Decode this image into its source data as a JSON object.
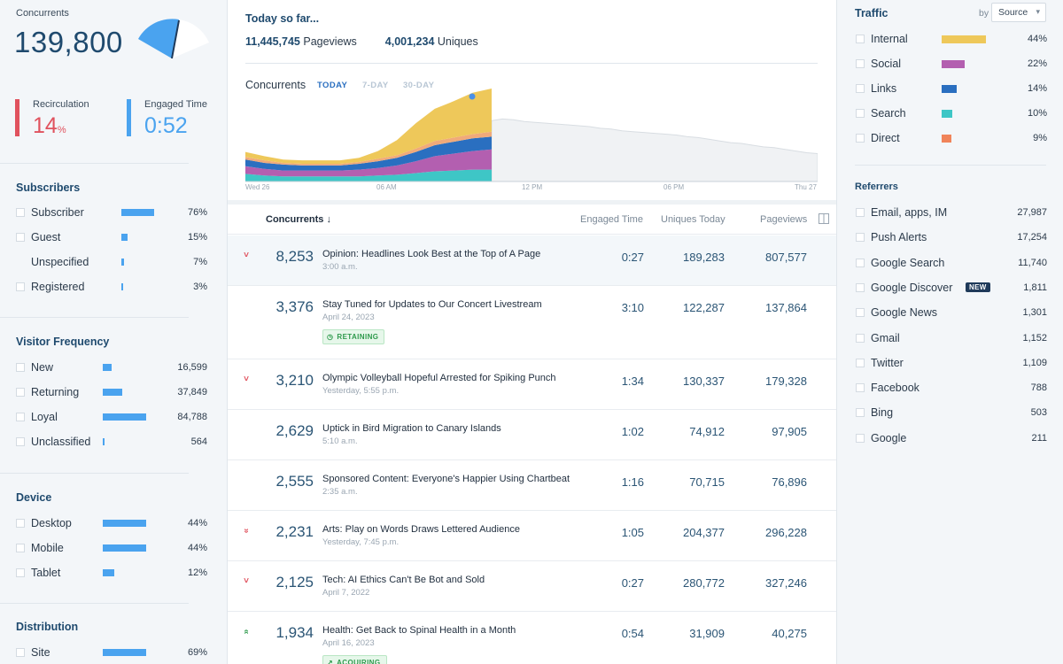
{
  "concurrents": {
    "label": "Concurrents",
    "value": "139,800"
  },
  "metrics": {
    "recirculation": {
      "label": "Recirculation",
      "value": "14",
      "unit": "%",
      "color": "#e0525e"
    },
    "engaged_time": {
      "label": "Engaged Time",
      "value": "0:52",
      "color": "#4aa3ef"
    }
  },
  "subscribers": {
    "title": "Subscribers",
    "items": [
      {
        "label": "Subscriber",
        "value": "76%",
        "fraction": 0.76,
        "checkbox": true
      },
      {
        "label": "Guest",
        "value": "15%",
        "fraction": 0.15,
        "checkbox": true
      },
      {
        "label": "Unspecified",
        "value": "7%",
        "fraction": 0.07,
        "checkbox": false
      },
      {
        "label": "Registered",
        "value": "3%",
        "fraction": 0.03,
        "checkbox": true
      }
    ]
  },
  "visitor_frequency": {
    "title": "Visitor Frequency",
    "items": [
      {
        "label": "New",
        "value": "16,599",
        "fraction": 0.2
      },
      {
        "label": "Returning",
        "value": "37,849",
        "fraction": 0.45
      },
      {
        "label": "Loyal",
        "value": "84,788",
        "fraction": 1.0
      },
      {
        "label": "Unclassified",
        "value": "564",
        "fraction": 0.02
      }
    ]
  },
  "device": {
    "title": "Device",
    "items": [
      {
        "label": "Desktop",
        "value": "44%",
        "fraction": 1.0
      },
      {
        "label": "Mobile",
        "value": "44%",
        "fraction": 1.0
      },
      {
        "label": "Tablet",
        "value": "12%",
        "fraction": 0.27
      }
    ]
  },
  "distribution": {
    "title": "Distribution",
    "items": [
      {
        "label": "Site",
        "value": "69%",
        "fraction": 1.0
      }
    ]
  },
  "today": {
    "title": "Today so far...",
    "pageviews_value": "11,445,745",
    "pageviews_label": "Pageviews",
    "uniques_value": "4,001,234",
    "uniques_label": "Uniques"
  },
  "chart": {
    "title": "Concurrents",
    "tabs": [
      "TODAY",
      "7-DAY",
      "30-DAY"
    ],
    "active_tab": "TODAY",
    "x_labels": [
      "Wed 26",
      "06 AM",
      "12 PM",
      "06 PM",
      "Thu 27"
    ]
  },
  "chart_data": {
    "type": "area",
    "title": "Concurrents",
    "x_labels": [
      "Wed 26",
      "06 AM",
      "12 PM",
      "06 PM",
      "Thu 27"
    ],
    "series": [
      {
        "color": "#3ec6c6",
        "values": [
          9,
          7,
          6,
          6,
          6,
          6,
          6,
          7,
          8,
          10,
          12,
          13,
          14,
          14
        ]
      },
      {
        "color": "#b35fb0",
        "values": [
          9,
          8,
          7,
          7,
          7,
          7,
          8,
          9,
          11,
          14,
          18,
          20,
          22,
          24
        ]
      },
      {
        "color": "#2a6fc0",
        "values": [
          8,
          7,
          7,
          6,
          6,
          6,
          7,
          8,
          9,
          11,
          13,
          14,
          15,
          15
        ]
      },
      {
        "color": "#f0aa7a",
        "values": [
          3,
          3,
          2,
          2,
          2,
          2,
          2,
          3,
          3,
          4,
          5,
          5,
          5,
          6
        ]
      },
      {
        "color": "#eec85a",
        "values": [
          6,
          5,
          4,
          4,
          4,
          4,
          5,
          9,
          18,
          30,
          38,
          43,
          49,
          51
        ]
      }
    ],
    "previous_day": [
      72,
      74,
      73,
      71,
      70,
      69,
      68,
      67,
      66,
      65,
      63,
      62,
      60,
      59,
      58,
      57,
      56,
      55,
      53,
      52,
      50,
      48,
      46,
      45,
      43,
      41,
      40,
      38,
      36,
      34,
      33
    ]
  },
  "table": {
    "headers": {
      "concurrents": "Concurrents ↓",
      "engaged": "Engaged Time",
      "uniques": "Uniques Today",
      "pageviews": "Pageviews"
    },
    "rows": [
      {
        "trend": "down",
        "concurrents": "8,253",
        "title": "Opinion: Headlines Look Best at the Top of A Page",
        "subtitle": "3:00 a.m.",
        "engaged": "0:27",
        "uniques": "189,283",
        "pageviews": "807,577",
        "highlight": true
      },
      {
        "trend": "",
        "concurrents": "3,376",
        "title": "Stay Tuned for Updates to Our Concert Livestream",
        "subtitle": "April 24, 2023",
        "engaged": "3:10",
        "uniques": "122,287",
        "pageviews": "137,864",
        "badge": "RETAINING"
      },
      {
        "trend": "down",
        "concurrents": "3,210",
        "title": "Olympic Volleyball Hopeful Arrested for Spiking Punch",
        "subtitle": "Yesterday, 5:55 p.m.",
        "engaged": "1:34",
        "uniques": "130,337",
        "pageviews": "179,328"
      },
      {
        "trend": "",
        "concurrents": "2,629",
        "title": "Uptick in Bird Migration to Canary Islands",
        "subtitle": "5:10 a.m.",
        "engaged": "1:02",
        "uniques": "74,912",
        "pageviews": "97,905"
      },
      {
        "trend": "",
        "concurrents": "2,555",
        "title": "Sponsored Content: Everyone's Happier Using Chartbeat",
        "subtitle": "2:35 a.m.",
        "engaged": "1:16",
        "uniques": "70,715",
        "pageviews": "76,896"
      },
      {
        "trend": "down2",
        "concurrents": "2,231",
        "title": "Arts: Play on Words Draws Lettered Audience",
        "subtitle": "Yesterday, 7:45 p.m.",
        "engaged": "1:05",
        "uniques": "204,377",
        "pageviews": "296,228"
      },
      {
        "trend": "down",
        "concurrents": "2,125",
        "title": "Tech: AI Ethics Can't Be Bot and Sold",
        "subtitle": "April 7, 2022",
        "engaged": "0:27",
        "uniques": "280,772",
        "pageviews": "327,246"
      },
      {
        "trend": "up2",
        "concurrents": "1,934",
        "title": "Health: Get Back to Spinal Health in a Month",
        "subtitle": "April 16, 2023",
        "engaged": "0:54",
        "uniques": "31,909",
        "pageviews": "40,275",
        "badge": "ACQUIRING"
      }
    ]
  },
  "traffic": {
    "title": "Traffic",
    "by_label": "by",
    "select_value": "Source",
    "items": [
      {
        "label": "Internal",
        "value": "44%",
        "color": "#eec85a",
        "fraction": 1.0
      },
      {
        "label": "Social",
        "value": "22%",
        "color": "#b35fb0",
        "fraction": 0.52
      },
      {
        "label": "Links",
        "value": "14%",
        "color": "#2a6fc0",
        "fraction": 0.34
      },
      {
        "label": "Search",
        "value": "10%",
        "color": "#3ec6c6",
        "fraction": 0.24
      },
      {
        "label": "Direct",
        "value": "9%",
        "color": "#f0845a",
        "fraction": 0.22
      }
    ]
  },
  "referrers": {
    "title": "Referrers",
    "new_badge": "NEW",
    "items": [
      {
        "label": "Email, apps, IM",
        "value": "27,987"
      },
      {
        "label": "Push Alerts",
        "value": "17,254"
      },
      {
        "label": "Google Search",
        "value": "11,740"
      },
      {
        "label": "Google Discover",
        "value": "1,811",
        "is_new": true
      },
      {
        "label": "Google News",
        "value": "1,301"
      },
      {
        "label": "Gmail",
        "value": "1,152"
      },
      {
        "label": "Twitter",
        "value": "1,109"
      },
      {
        "label": "Facebook",
        "value": "788"
      },
      {
        "label": "Bing",
        "value": "503"
      },
      {
        "label": "Google",
        "value": "211"
      }
    ]
  }
}
